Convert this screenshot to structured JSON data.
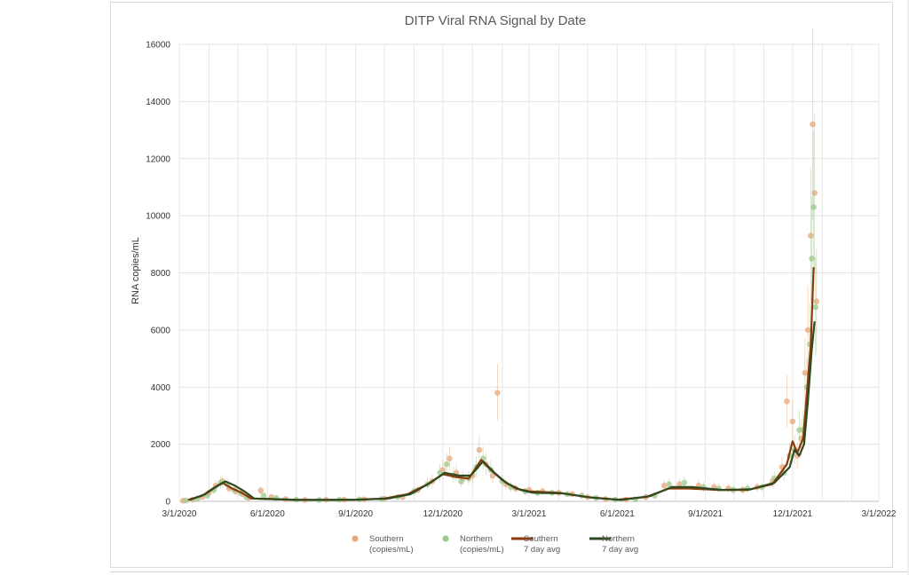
{
  "chart_data": {
    "type": "scatter",
    "title": "DITP Viral RNA Signal by Date",
    "xlabel": "",
    "ylabel": "RNA copies/mL",
    "ylim": [
      0,
      16000
    ],
    "yticks": [
      "0",
      "2000",
      "4000",
      "6000",
      "8000",
      "10000",
      "12000",
      "14000",
      "16000"
    ],
    "xlim": [
      "2020-03-01",
      "2022-03-01"
    ],
    "xticks": [
      "3/1/2020",
      "6/1/2020",
      "9/1/2020",
      "12/1/2020",
      "3/1/2021",
      "6/1/2021",
      "9/1/2021",
      "12/1/2021",
      "3/1/2022"
    ],
    "grid": true,
    "legend_position": "bottom",
    "series": [
      {
        "name_lines": [
          "Southern",
          "(copies/mL)"
        ],
        "kind": "scatter",
        "color": "#e8a77c",
        "points": [
          [
            "2020-03-05",
            20
          ],
          [
            "2020-03-15",
            60
          ],
          [
            "2020-03-25",
            150
          ],
          [
            "2020-04-01",
            300
          ],
          [
            "2020-04-08",
            550
          ],
          [
            "2020-04-15",
            700
          ],
          [
            "2020-04-22",
            450
          ],
          [
            "2020-04-29",
            350
          ],
          [
            "2020-05-06",
            250
          ],
          [
            "2020-05-12",
            120
          ],
          [
            "2020-05-25",
            380
          ],
          [
            "2020-06-05",
            150
          ],
          [
            "2020-06-20",
            80
          ],
          [
            "2020-07-10",
            50
          ],
          [
            "2020-08-01",
            60
          ],
          [
            "2020-08-20",
            60
          ],
          [
            "2020-09-10",
            70
          ],
          [
            "2020-10-01",
            90
          ],
          [
            "2020-10-20",
            150
          ],
          [
            "2020-11-05",
            400
          ],
          [
            "2020-11-20",
            700
          ],
          [
            "2020-12-01",
            1100
          ],
          [
            "2020-12-08",
            1500
          ],
          [
            "2020-12-15",
            1000
          ],
          [
            "2020-12-22",
            800
          ],
          [
            "2021-01-01",
            900
          ],
          [
            "2021-01-08",
            1800
          ],
          [
            "2021-01-15",
            1300
          ],
          [
            "2021-01-22",
            900
          ],
          [
            "2021-01-27",
            3800
          ],
          [
            "2021-02-05",
            600
          ],
          [
            "2021-02-15",
            450
          ],
          [
            "2021-03-01",
            400
          ],
          [
            "2021-03-15",
            350
          ],
          [
            "2021-04-01",
            300
          ],
          [
            "2021-04-15",
            250
          ],
          [
            "2021-05-01",
            150
          ],
          [
            "2021-05-20",
            80
          ],
          [
            "2021-06-10",
            60
          ],
          [
            "2021-07-01",
            150
          ],
          [
            "2021-07-20",
            550
          ],
          [
            "2021-08-05",
            600
          ],
          [
            "2021-08-25",
            550
          ],
          [
            "2021-09-10",
            500
          ],
          [
            "2021-09-25",
            450
          ],
          [
            "2021-10-10",
            400
          ],
          [
            "2021-10-25",
            500
          ],
          [
            "2021-11-10",
            700
          ],
          [
            "2021-11-20",
            1200
          ],
          [
            "2021-11-25",
            3500
          ],
          [
            "2021-12-01",
            2800
          ],
          [
            "2021-12-06",
            1600
          ],
          [
            "2021-12-10",
            2200
          ],
          [
            "2021-12-14",
            4500
          ],
          [
            "2021-12-17",
            6000
          ],
          [
            "2021-12-20",
            9300
          ],
          [
            "2021-12-22",
            13200
          ],
          [
            "2021-12-24",
            10800
          ],
          [
            "2021-12-26",
            7000
          ]
        ]
      },
      {
        "name_lines": [
          "Northern",
          "(copies/mL)"
        ],
        "kind": "scatter",
        "color": "#9cc98c",
        "points": [
          [
            "2020-03-08",
            30
          ],
          [
            "2020-03-20",
            100
          ],
          [
            "2020-03-30",
            200
          ],
          [
            "2020-04-06",
            400
          ],
          [
            "2020-04-13",
            650
          ],
          [
            "2020-04-20",
            600
          ],
          [
            "2020-04-27",
            400
          ],
          [
            "2020-05-04",
            300
          ],
          [
            "2020-05-10",
            150
          ],
          [
            "2020-05-28",
            200
          ],
          [
            "2020-06-10",
            120
          ],
          [
            "2020-07-01",
            60
          ],
          [
            "2020-07-25",
            50
          ],
          [
            "2020-08-15",
            60
          ],
          [
            "2020-09-05",
            70
          ],
          [
            "2020-09-28",
            80
          ],
          [
            "2020-10-15",
            150
          ],
          [
            "2020-11-01",
            350
          ],
          [
            "2020-11-15",
            600
          ],
          [
            "2020-11-28",
            1000
          ],
          [
            "2020-12-05",
            1300
          ],
          [
            "2020-12-12",
            900
          ],
          [
            "2020-12-20",
            700
          ],
          [
            "2020-12-28",
            800
          ],
          [
            "2021-01-05",
            1200
          ],
          [
            "2021-01-12",
            1500
          ],
          [
            "2021-01-20",
            1100
          ],
          [
            "2021-02-01",
            700
          ],
          [
            "2021-02-10",
            500
          ],
          [
            "2021-02-25",
            350
          ],
          [
            "2021-03-10",
            300
          ],
          [
            "2021-03-25",
            300
          ],
          [
            "2021-04-10",
            250
          ],
          [
            "2021-04-25",
            200
          ],
          [
            "2021-05-10",
            120
          ],
          [
            "2021-05-30",
            60
          ],
          [
            "2021-06-20",
            70
          ],
          [
            "2021-07-10",
            200
          ],
          [
            "2021-07-25",
            600
          ],
          [
            "2021-08-10",
            650
          ],
          [
            "2021-08-30",
            500
          ],
          [
            "2021-09-15",
            450
          ],
          [
            "2021-09-30",
            400
          ],
          [
            "2021-10-15",
            450
          ],
          [
            "2021-10-30",
            500
          ],
          [
            "2021-11-12",
            800
          ],
          [
            "2021-11-22",
            1000
          ],
          [
            "2021-11-28",
            1600
          ],
          [
            "2021-12-03",
            1800
          ],
          [
            "2021-12-08",
            2500
          ],
          [
            "2021-12-12",
            2500
          ],
          [
            "2021-12-16",
            4000
          ],
          [
            "2021-12-19",
            5500
          ],
          [
            "2021-12-21",
            8500
          ],
          [
            "2021-12-23",
            10300
          ],
          [
            "2021-12-25",
            6800
          ]
        ]
      },
      {
        "name_lines": [
          "Southern",
          "7 day avg"
        ],
        "kind": "line",
        "color": "#8b3a0e",
        "points": [
          [
            "2020-03-10",
            50
          ],
          [
            "2020-03-25",
            200
          ],
          [
            "2020-04-05",
            450
          ],
          [
            "2020-04-15",
            650
          ],
          [
            "2020-04-25",
            450
          ],
          [
            "2020-05-05",
            300
          ],
          [
            "2020-05-15",
            100
          ],
          [
            "2020-06-01",
            80
          ],
          [
            "2020-07-01",
            50
          ],
          [
            "2020-08-01",
            50
          ],
          [
            "2020-09-01",
            60
          ],
          [
            "2020-10-01",
            100
          ],
          [
            "2020-10-25",
            250
          ],
          [
            "2020-11-15",
            600
          ],
          [
            "2020-12-01",
            950
          ],
          [
            "2020-12-15",
            850
          ],
          [
            "2020-12-28",
            800
          ],
          [
            "2021-01-10",
            1450
          ],
          [
            "2021-01-20",
            1100
          ],
          [
            "2021-02-01",
            750
          ],
          [
            "2021-02-15",
            450
          ],
          [
            "2021-03-01",
            350
          ],
          [
            "2021-04-01",
            300
          ],
          [
            "2021-05-01",
            150
          ],
          [
            "2021-06-01",
            60
          ],
          [
            "2021-07-01",
            150
          ],
          [
            "2021-07-25",
            450
          ],
          [
            "2021-08-15",
            450
          ],
          [
            "2021-09-15",
            400
          ],
          [
            "2021-10-15",
            400
          ],
          [
            "2021-11-10",
            600
          ],
          [
            "2021-11-25",
            1300
          ],
          [
            "2021-12-01",
            2100
          ],
          [
            "2021-12-06",
            1700
          ],
          [
            "2021-12-12",
            2200
          ],
          [
            "2021-12-16",
            3800
          ],
          [
            "2021-12-20",
            5500
          ],
          [
            "2021-12-23",
            8200
          ]
        ]
      },
      {
        "name_lines": [
          "Northern",
          "7 day avg"
        ],
        "kind": "line",
        "color": "#2f4a1e",
        "points": [
          [
            "2020-03-12",
            50
          ],
          [
            "2020-03-28",
            250
          ],
          [
            "2020-04-08",
            500
          ],
          [
            "2020-04-18",
            700
          ],
          [
            "2020-04-28",
            550
          ],
          [
            "2020-05-08",
            350
          ],
          [
            "2020-05-18",
            100
          ],
          [
            "2020-06-05",
            80
          ],
          [
            "2020-07-05",
            50
          ],
          [
            "2020-08-05",
            50
          ],
          [
            "2020-09-05",
            60
          ],
          [
            "2020-10-05",
            100
          ],
          [
            "2020-10-28",
            250
          ],
          [
            "2020-11-18",
            650
          ],
          [
            "2020-12-03",
            1000
          ],
          [
            "2020-12-18",
            900
          ],
          [
            "2020-12-30",
            900
          ],
          [
            "2021-01-12",
            1400
          ],
          [
            "2021-01-24",
            1000
          ],
          [
            "2021-02-05",
            650
          ],
          [
            "2021-02-20",
            400
          ],
          [
            "2021-03-05",
            300
          ],
          [
            "2021-04-05",
            280
          ],
          [
            "2021-05-05",
            130
          ],
          [
            "2021-06-05",
            50
          ],
          [
            "2021-07-05",
            180
          ],
          [
            "2021-07-28",
            500
          ],
          [
            "2021-08-18",
            500
          ],
          [
            "2021-09-18",
            400
          ],
          [
            "2021-10-18",
            420
          ],
          [
            "2021-11-12",
            650
          ],
          [
            "2021-11-28",
            1200
          ],
          [
            "2021-12-03",
            1800
          ],
          [
            "2021-12-08",
            1600
          ],
          [
            "2021-12-13",
            2000
          ],
          [
            "2021-12-17",
            3500
          ],
          [
            "2021-12-21",
            5300
          ],
          [
            "2021-12-24",
            6300
          ]
        ]
      }
    ]
  }
}
